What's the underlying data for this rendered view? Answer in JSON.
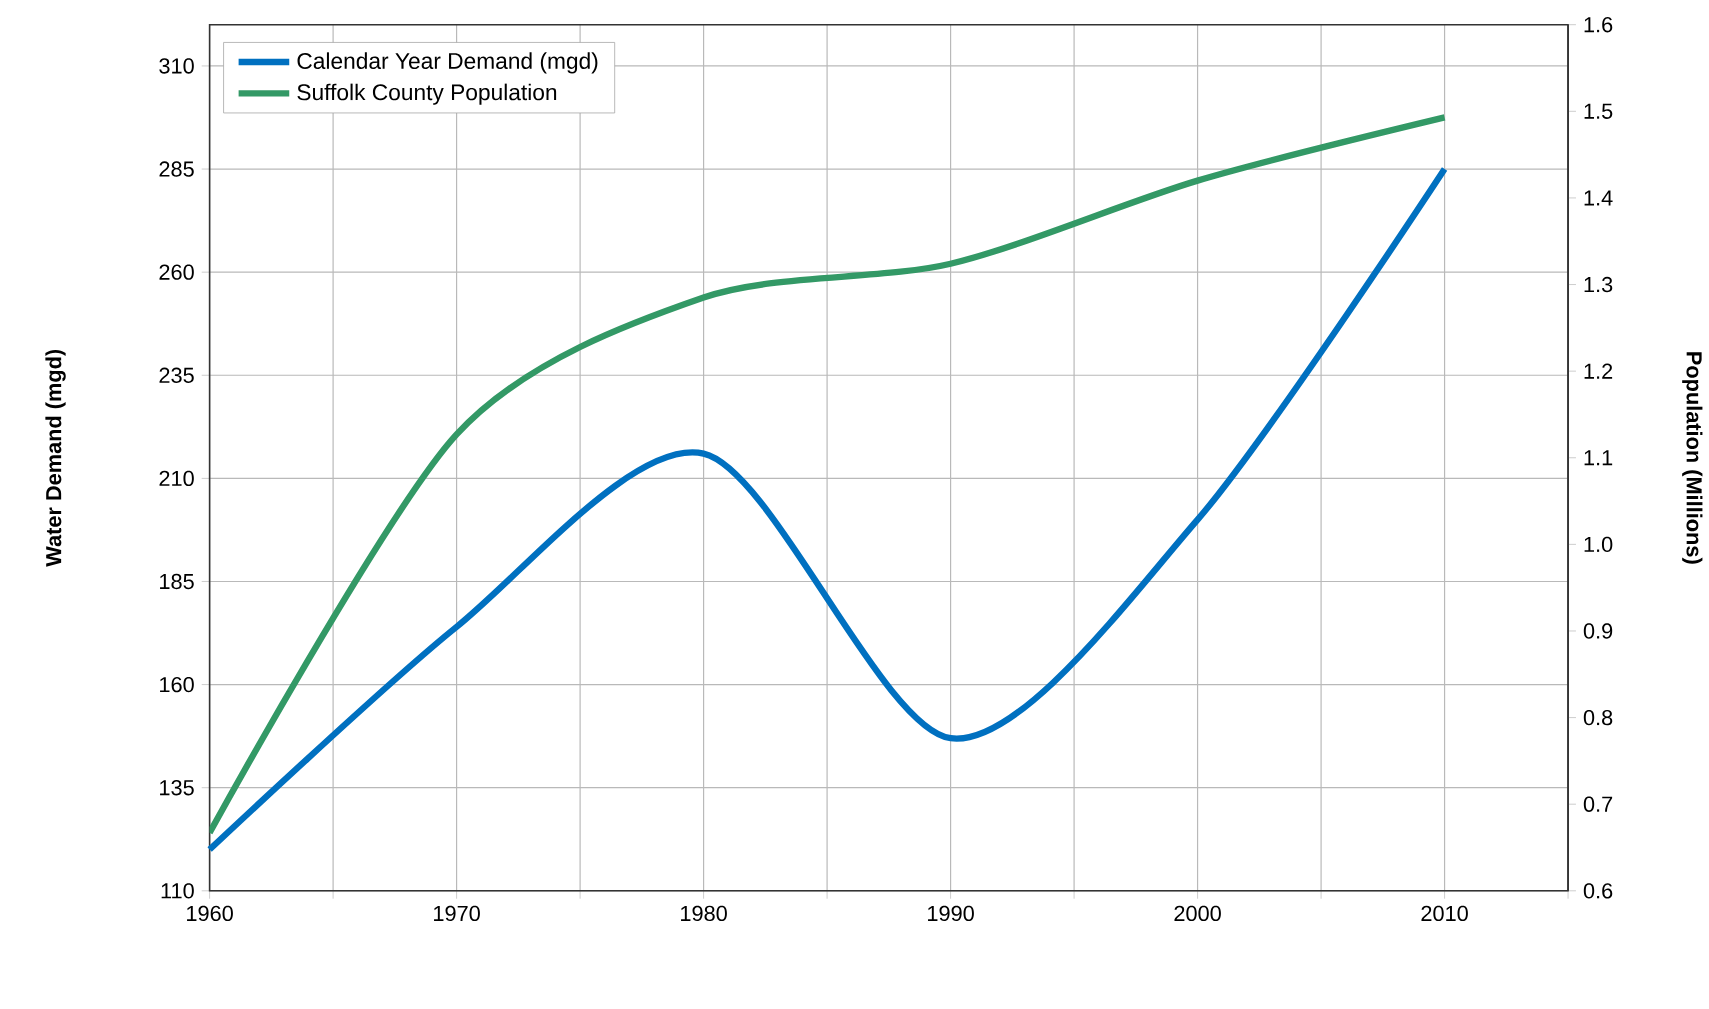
{
  "chart_data": {
    "type": "line",
    "ylabel": "Water Demand (mgd)",
    "y2label": "Population (Millions)",
    "x": [
      1960,
      1970,
      1980,
      1990,
      2000,
      2010
    ],
    "series": [
      {
        "name": "Calendar Year Demand (mgd)",
        "color": "#0070c0",
        "values": [
          120,
          174,
          216,
          147,
          200,
          285
        ]
      },
      {
        "name": "Suffolk County Population",
        "color": "#339966",
        "axis": "y2",
        "values": [
          0.667,
          1.127,
          1.285,
          1.324,
          1.42,
          1.493
        ]
      }
    ],
    "xlim": [
      1960,
      2015
    ],
    "xticks": [
      1960,
      {
        "value": 1965,
        "label": null
      },
      1970,
      {
        "value": 1975,
        "label": null
      },
      1980,
      {
        "value": 1985,
        "label": null
      },
      1990,
      {
        "value": 1995,
        "label": null
      },
      2000,
      {
        "value": 2005,
        "label": null
      },
      2010,
      {
        "value": 2015,
        "label": null
      }
    ],
    "ylim": [
      110,
      320
    ],
    "yticks": [
      110,
      135,
      160,
      185,
      210,
      235,
      260,
      285,
      310
    ],
    "y2lim": [
      0.6,
      1.6
    ],
    "y2ticks": [
      0.6,
      0.7,
      0.8,
      0.9,
      {
        "value": 1.0,
        "label": "1.0"
      },
      1.1,
      1.2,
      1.3,
      1.4,
      1.5,
      1.6
    ],
    "grid": true,
    "legend": "top left"
  }
}
